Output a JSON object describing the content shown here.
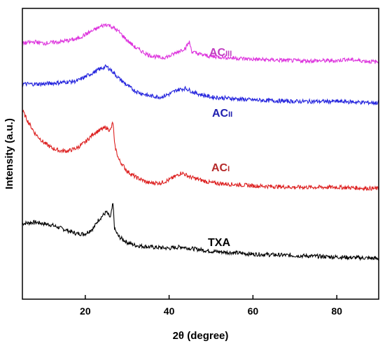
{
  "chart_data": {
    "type": "line",
    "title": "",
    "xlabel": "2θ (degree)",
    "ylabel": "Intensity (a.u.)",
    "xlim": [
      5,
      90
    ],
    "ylim": [
      0,
      100
    ],
    "xticks": [
      20,
      40,
      60,
      80
    ],
    "xtick_labels": [
      "20",
      "40",
      "60",
      "80"
    ],
    "yticks_shown": false,
    "grid": false,
    "legend": "inline labels at right of each curve",
    "series": [
      {
        "name": "TXA",
        "label_main": "TXA",
        "label_sub": "",
        "color": "#000000",
        "x": [
          5,
          8,
          10,
          12,
          14,
          16,
          18,
          20,
          22,
          23,
          24,
          25,
          26,
          26.6,
          27,
          28,
          30,
          32,
          35,
          40,
          43,
          45,
          50,
          55,
          60,
          70,
          80,
          90
        ],
        "y": [
          26,
          26.5,
          26,
          25.5,
          24.5,
          23.5,
          22.5,
          22.5,
          24.5,
          27,
          28.5,
          30,
          28,
          33,
          24,
          21.5,
          19.5,
          18.5,
          18,
          17.5,
          18,
          17.5,
          16.5,
          16,
          15.5,
          15,
          14.5,
          14
        ]
      },
      {
        "name": "ACI",
        "label_main": "AC",
        "label_sub": "I",
        "color": "#dd2222",
        "x": [
          5,
          6,
          8,
          10,
          12,
          14,
          16,
          18,
          20,
          22,
          24,
          25,
          26,
          26.6,
          27,
          28,
          30,
          32,
          35,
          38,
          40,
          43,
          45,
          50,
          60,
          70,
          80,
          90
        ],
        "y": [
          65,
          62,
          57,
          54,
          52,
          51,
          51,
          52,
          54,
          57,
          58.5,
          59,
          58,
          61,
          53,
          48,
          44,
          42,
          40,
          40,
          41,
          43.5,
          42,
          40,
          39,
          38.5,
          38.5,
          38
        ]
      },
      {
        "name": "ACII",
        "label_main": "AC",
        "label_sub": "II",
        "color": "#2222dd",
        "x": [
          5,
          8,
          10,
          14,
          18,
          20,
          22,
          24,
          25,
          26,
          28,
          30,
          32,
          35,
          38,
          40,
          42,
          44,
          46,
          50,
          60,
          70,
          80,
          90
        ],
        "y": [
          74,
          74,
          74,
          74.5,
          75,
          76.5,
          78,
          79.5,
          80,
          79,
          76,
          73.5,
          71.5,
          70,
          69.5,
          70.5,
          72,
          72.5,
          71,
          69.5,
          68.5,
          68,
          68,
          67.5
        ]
      },
      {
        "name": "ACIII",
        "label_main": "AC",
        "label_sub": "III",
        "color": "#dd33dd",
        "x": [
          5,
          8,
          10,
          14,
          18,
          20,
          22,
          24,
          25,
          26,
          28,
          30,
          32,
          35,
          38,
          40,
          42,
          44,
          44.8,
          45.5,
          48,
          50,
          55,
          60,
          70,
          80,
          82,
          90
        ],
        "y": [
          88,
          88.5,
          88,
          88.5,
          89.5,
          91,
          92.5,
          94,
          94.5,
          94,
          92,
          89,
          86.5,
          84,
          83,
          83.5,
          85,
          86.5,
          88.5,
          85,
          84,
          83.5,
          83,
          82.5,
          82,
          82,
          82.5,
          81.5
        ]
      }
    ]
  }
}
